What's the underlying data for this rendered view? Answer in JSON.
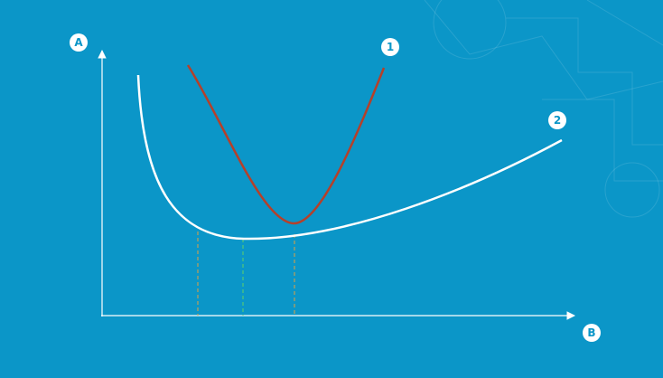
{
  "axes": {
    "y_label": "A",
    "x_label": "B"
  },
  "curves": [
    {
      "label": "1"
    },
    {
      "label": "2"
    }
  ]
}
